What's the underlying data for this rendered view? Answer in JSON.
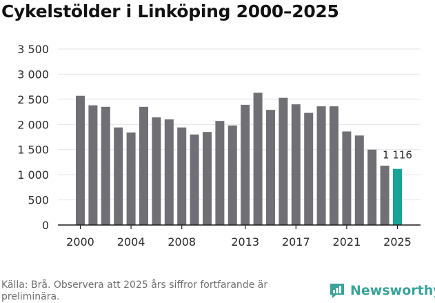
{
  "title": "Cykelstölder i Linköping 2000–2025",
  "chart_data": {
    "type": "bar",
    "title": "Cykelstölder i Linköping 2000–2025",
    "categories": [
      2000,
      2001,
      2002,
      2003,
      2004,
      2005,
      2006,
      2007,
      2008,
      2009,
      2010,
      2011,
      2012,
      2013,
      2014,
      2015,
      2016,
      2017,
      2018,
      2019,
      2020,
      2021,
      2022,
      2023,
      2024,
      2025
    ],
    "values": [
      2570,
      2380,
      2350,
      1940,
      1840,
      2350,
      2140,
      2100,
      1940,
      1800,
      1850,
      2070,
      1980,
      2390,
      2630,
      2290,
      2530,
      2400,
      2230,
      2360,
      2360,
      1860,
      1780,
      1500,
      1180,
      1116
    ],
    "highlight_index": 25,
    "annotation": {
      "index": 25,
      "label": "1 116"
    },
    "xticks": [
      {
        "value": 2000,
        "label": "2000"
      },
      {
        "value": 2004,
        "label": "2004"
      },
      {
        "value": 2008,
        "label": "2008"
      },
      {
        "value": 2013,
        "label": "2013"
      },
      {
        "value": 2017,
        "label": "2017"
      },
      {
        "value": 2021,
        "label": "2021"
      },
      {
        "value": 2025,
        "label": "2025"
      }
    ],
    "yticks": [
      {
        "value": 0,
        "label": "0"
      },
      {
        "value": 500,
        "label": "500"
      },
      {
        "value": 1000,
        "label": "1 000"
      },
      {
        "value": 1500,
        "label": "1 500"
      },
      {
        "value": 2000,
        "label": "2 000"
      },
      {
        "value": 2500,
        "label": "2 500"
      },
      {
        "value": 3000,
        "label": "3 000"
      },
      {
        "value": 3500,
        "label": "3 500"
      }
    ],
    "ylim": [
      0,
      3500
    ],
    "xlabel": "",
    "ylabel": "",
    "grid": true,
    "colors": {
      "bar": "#707074",
      "highlight": "#17a398",
      "grid": "#e3e3e3",
      "axis": "#1a1a1a",
      "text": "#2a2a2a"
    }
  },
  "footer": {
    "note": "Källa: Brå. Observera att 2025 års siffror fortfarande är preliminära.",
    "brand": "Newsworthy",
    "brand_icon": "bar-chart-logo-icon",
    "brand_color": "#3aa39a"
  }
}
